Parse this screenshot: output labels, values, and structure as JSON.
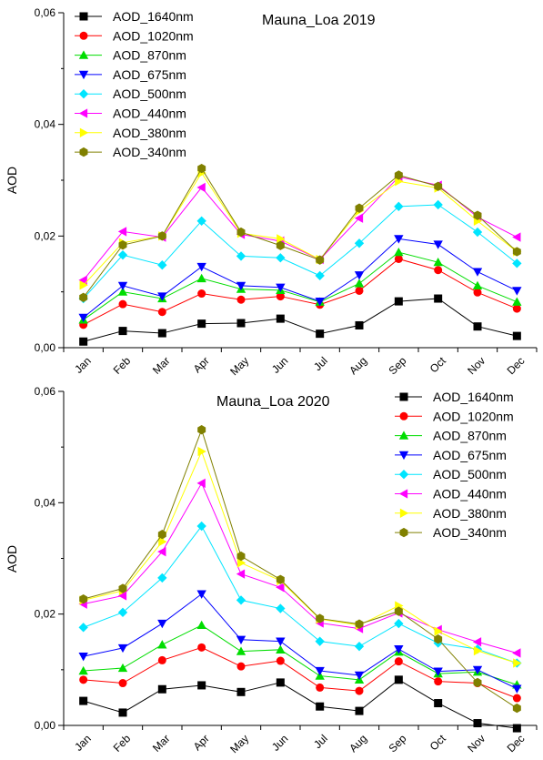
{
  "chart_data": [
    {
      "type": "line",
      "title": "Mauna_Loa 2019",
      "xlabel": "",
      "ylabel": "AOD",
      "ylim": [
        0,
        0.06
      ],
      "yticks": [
        0,
        0.02,
        0.04,
        0.06
      ],
      "ytick_labels": [
        "0,00",
        "0,02",
        "0,04",
        "0,06"
      ],
      "categories": [
        "Jan",
        "Feb",
        "Mar",
        "Apr",
        "May",
        "Jun",
        "Jul",
        "Aug",
        "Sep",
        "Oct",
        "Nov",
        "Dec"
      ],
      "legend_position": "top-left",
      "series": [
        {
          "name": "AOD_1640nm",
          "color": "#000000",
          "marker": "square",
          "values": [
            0.0011,
            0.003,
            0.0026,
            0.0043,
            0.0044,
            0.0052,
            0.0025,
            0.004,
            0.0083,
            0.0088,
            0.0038,
            0.0021
          ]
        },
        {
          "name": "AOD_1020nm",
          "color": "#ff0000",
          "marker": "circle",
          "values": [
            0.0041,
            0.0078,
            0.0064,
            0.0097,
            0.0086,
            0.0092,
            0.0077,
            0.0102,
            0.0159,
            0.0139,
            0.0099,
            0.007
          ]
        },
        {
          "name": "AOD_870nm",
          "color": "#00dd00",
          "marker": "triangle-up",
          "values": [
            0.005,
            0.01,
            0.0088,
            0.0124,
            0.0105,
            0.0103,
            0.0082,
            0.0115,
            0.0171,
            0.0153,
            0.0111,
            0.0082
          ]
        },
        {
          "name": "AOD_675nm",
          "color": "#0000ff",
          "marker": "triangle-down",
          "values": [
            0.0054,
            0.0111,
            0.0092,
            0.0145,
            0.0111,
            0.0108,
            0.0083,
            0.013,
            0.0195,
            0.0185,
            0.0136,
            0.0102
          ]
        },
        {
          "name": "AOD_500nm",
          "color": "#00e5ff",
          "marker": "diamond",
          "values": [
            0.0088,
            0.0166,
            0.0148,
            0.0227,
            0.0164,
            0.0161,
            0.0129,
            0.0187,
            0.0253,
            0.0256,
            0.0207,
            0.0151
          ]
        },
        {
          "name": "AOD_440nm",
          "color": "#ff00ff",
          "marker": "triangle-left",
          "values": [
            0.0121,
            0.0208,
            0.0198,
            0.0287,
            0.0203,
            0.0191,
            0.0158,
            0.0232,
            0.0306,
            0.0291,
            0.0234,
            0.0198
          ]
        },
        {
          "name": "AOD_380nm",
          "color": "#ffff00",
          "marker": "triangle-right",
          "values": [
            0.0112,
            0.0188,
            0.02,
            0.0313,
            0.0205,
            0.0195,
            0.0158,
            0.0245,
            0.0298,
            0.0286,
            0.0227,
            0.0172
          ]
        },
        {
          "name": "AOD_340nm",
          "color": "#808000",
          "marker": "hexagon",
          "values": [
            0.009,
            0.0184,
            0.02,
            0.0321,
            0.0207,
            0.0183,
            0.0157,
            0.025,
            0.0309,
            0.0289,
            0.0237,
            0.0172
          ]
        }
      ]
    },
    {
      "type": "line",
      "title": "Mauna_Loa 2020",
      "xlabel": "",
      "ylabel": "AOD",
      "ylim": [
        0,
        0.06
      ],
      "yticks": [
        0,
        0.02,
        0.04,
        0.06
      ],
      "ytick_labels": [
        "0,00",
        "0,02",
        "0,04",
        "0,06"
      ],
      "categories": [
        "Jan",
        "Feb",
        "Mar",
        "Apr",
        "May",
        "Jun",
        "Jul",
        "Aug",
        "Sep",
        "Oct",
        "Nov",
        "Dec"
      ],
      "legend_position": "top-right",
      "series": [
        {
          "name": "AOD_1640nm",
          "color": "#000000",
          "marker": "square",
          "values": [
            0.0044,
            0.0023,
            0.0065,
            0.0072,
            0.006,
            0.0077,
            0.0034,
            0.0026,
            0.0082,
            0.004,
            0.0004,
            -0.0005
          ]
        },
        {
          "name": "AOD_1020nm",
          "color": "#ff0000",
          "marker": "circle",
          "values": [
            0.0082,
            0.0076,
            0.0117,
            0.014,
            0.0106,
            0.0116,
            0.0068,
            0.0062,
            0.0115,
            0.0079,
            0.0076,
            0.0049
          ]
        },
        {
          "name": "AOD_870nm",
          "color": "#00dd00",
          "marker": "triangle-up",
          "values": [
            0.0098,
            0.0103,
            0.0145,
            0.018,
            0.0133,
            0.0136,
            0.0089,
            0.0082,
            0.0132,
            0.0093,
            0.0096,
            0.0073
          ]
        },
        {
          "name": "AOD_675nm",
          "color": "#0000ff",
          "marker": "triangle-down",
          "values": [
            0.0124,
            0.0139,
            0.0183,
            0.0236,
            0.0154,
            0.0151,
            0.0098,
            0.009,
            0.0137,
            0.0097,
            0.01,
            0.0066
          ]
        },
        {
          "name": "AOD_500nm",
          "color": "#00e5ff",
          "marker": "diamond",
          "values": [
            0.0176,
            0.0203,
            0.0265,
            0.0358,
            0.0225,
            0.021,
            0.0151,
            0.0142,
            0.0183,
            0.0148,
            0.0137,
            0.0112
          ]
        },
        {
          "name": "AOD_440nm",
          "color": "#ff00ff",
          "marker": "triangle-left",
          "values": [
            0.0218,
            0.0233,
            0.0312,
            0.0435,
            0.0272,
            0.0248,
            0.0184,
            0.0174,
            0.0202,
            0.0172,
            0.015,
            0.013
          ]
        },
        {
          "name": "AOD_380nm",
          "color": "#ffff00",
          "marker": "triangle-right",
          "values": [
            0.0225,
            0.0242,
            0.033,
            0.0492,
            0.0292,
            0.026,
            0.0191,
            0.018,
            0.0215,
            0.0169,
            0.0134,
            0.0112
          ]
        },
        {
          "name": "AOD_340nm",
          "color": "#808000",
          "marker": "hexagon",
          "values": [
            0.0227,
            0.0246,
            0.0343,
            0.0531,
            0.0304,
            0.0262,
            0.0192,
            0.0182,
            0.0205,
            0.0155,
            0.0077,
            0.0031
          ]
        }
      ]
    }
  ]
}
